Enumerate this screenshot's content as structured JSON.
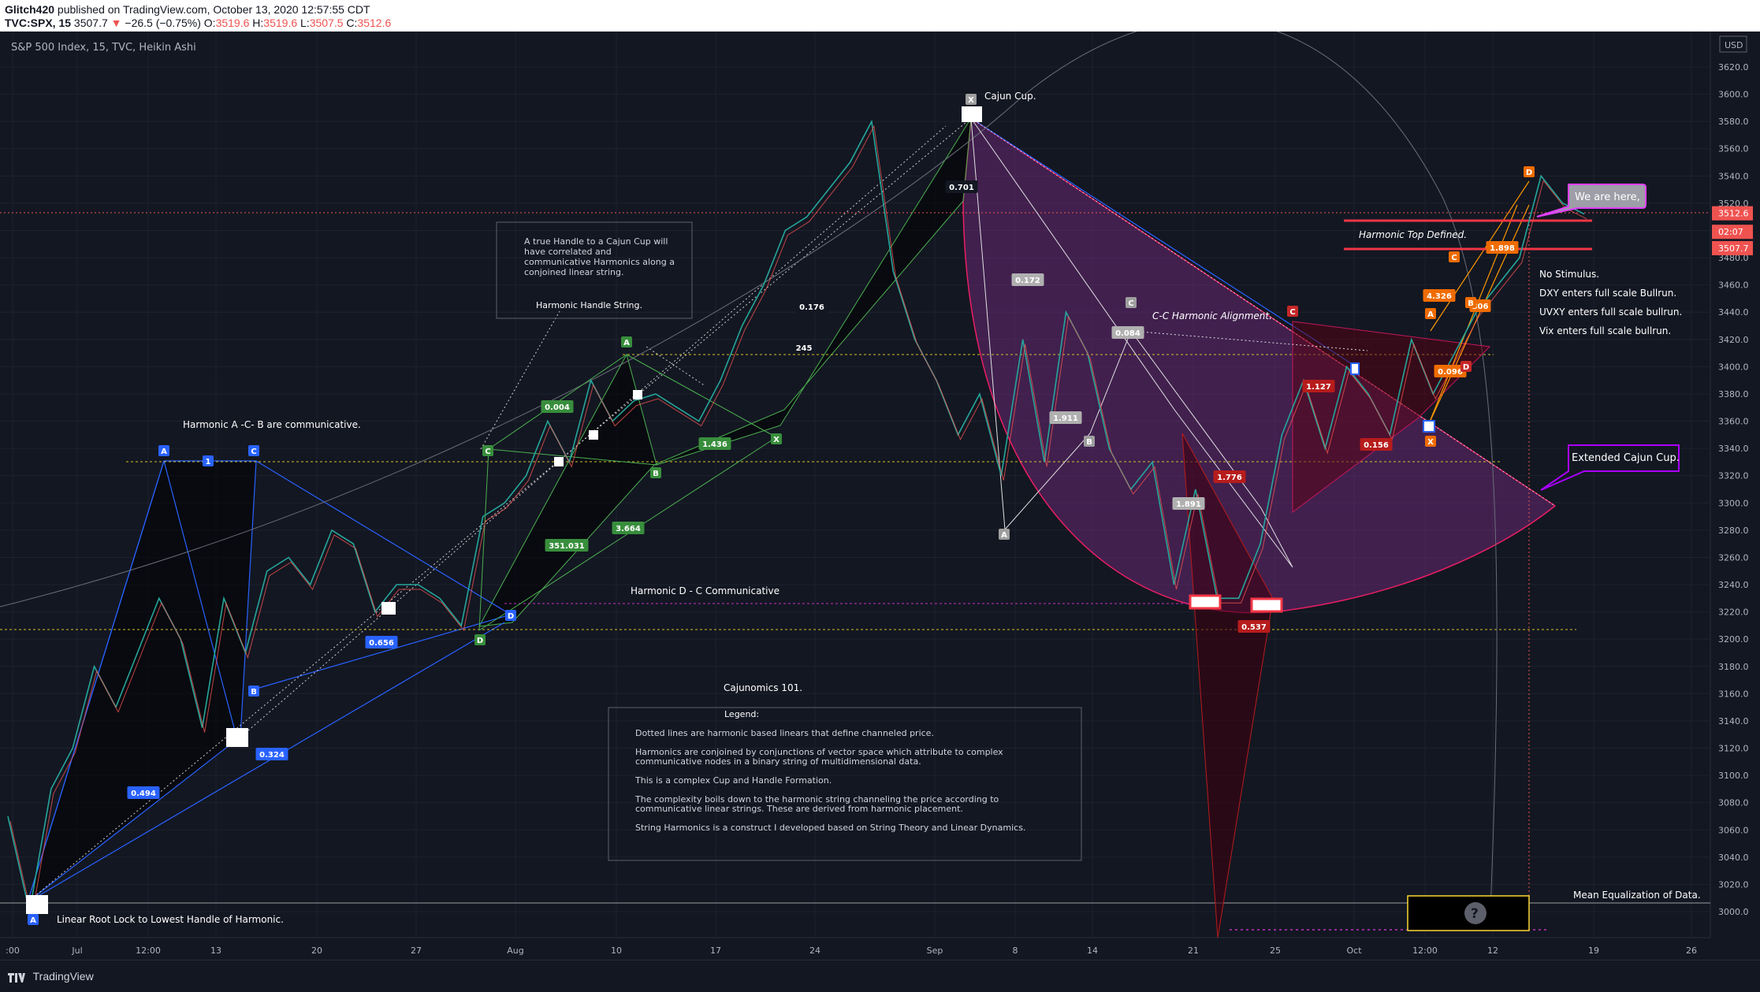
{
  "header": {
    "author": "Glitch420",
    "published": "published on TradingView.com, October 13, 2020 12:57:55 CDT",
    "symbol": "TVC:SPX, 15",
    "price": "3507.7",
    "change": "−26.5 (−0.75%)",
    "o_label": "O:",
    "o": "3519.6",
    "h_label": "H:",
    "h": "3519.6",
    "l_label": "L:",
    "l": "3507.5",
    "c_label": "C:",
    "c": "3512.6"
  },
  "chart_title": "S&P 500 Index, 15, TVC, Heikin Ashi",
  "currency": "USD",
  "footer": {
    "logo": "TradingView"
  },
  "chart_data": {
    "type": "line",
    "title": "S&P 500 Index, 15, TVC, Heikin Ashi",
    "ylim": [
      2980,
      3640
    ],
    "yticks": [
      "3620.0",
      "3600.0",
      "3580.0",
      "3560.0",
      "3540.0",
      "3520.0",
      "3500.0",
      "3480.0",
      "3460.0",
      "3440.0",
      "3420.0",
      "3400.0",
      "3380.0",
      "3360.0",
      "3340.0",
      "3320.0",
      "3300.0",
      "3280.0",
      "3260.0",
      "3240.0",
      "3220.0",
      "3200.0",
      "3180.0",
      "3160.0",
      "3140.0",
      "3120.0",
      "3100.0",
      "3080.0",
      "3060.0",
      "3040.0",
      "3020.0",
      "3000.0"
    ],
    "xticks": [
      ":00",
      "Jul",
      "12:00",
      "13",
      "20",
      "27",
      "Aug",
      "10",
      "17",
      "24",
      "Sep",
      "8",
      "14",
      "21",
      "25",
      "Oct",
      "12:00",
      "12",
      "19",
      "26"
    ],
    "price_tags": [
      {
        "label": "3512.6",
        "value": 3512.6,
        "color": "#ef5350"
      },
      {
        "label": "02:07",
        "value": 3499,
        "color": "#ef5350"
      },
      {
        "label": "3507.7",
        "value": 3487,
        "color": "#ef5350"
      }
    ],
    "series": [
      {
        "values": [
          3070,
          3000,
          3090,
          3120,
          3180,
          3150,
          3190,
          3230,
          3200,
          3135,
          3230,
          3190,
          3250,
          3260,
          3240,
          3280,
          3270,
          3220,
          3240,
          3240,
          3230,
          3210,
          3290,
          3300,
          3320,
          3360,
          3330,
          3390,
          3360,
          3375,
          3380,
          3370,
          3360,
          3390,
          3430,
          3460,
          3500,
          3510,
          3530,
          3550,
          3580,
          3470,
          3420,
          3390,
          3350,
          3380,
          3320,
          3420,
          3330,
          3440,
          3410,
          3340,
          3310,
          3330,
          3240,
          3310,
          3230,
          3230,
          3270,
          3350,
          3390,
          3340,
          3400,
          3380,
          3350,
          3420,
          3380,
          3410,
          3440,
          3460,
          3480,
          3540,
          3520,
          3512
        ]
      }
    ]
  },
  "labels": {
    "cajun_cup": "Cajun Cup.",
    "handle_note_1": "A true Handle to a Cajun Cup will",
    "handle_note_2": "have correlated and",
    "handle_note_3": "communicative Harmonics along a",
    "handle_note_4": "conjoined linear string.",
    "harmonic_handle_string": "Harmonic Handle String.",
    "harmonic_acb": "Harmonic A -C- B are communicative.",
    "harmonic_dc": "Harmonic D - C Communicative",
    "cc_alignment": "C-C Harmonic Alignment.",
    "harmonic_top": "Harmonic Top Defined.",
    "we_are_here": "We are here,",
    "extended_cup": "Extended Cajun Cup.",
    "no_stimulus": "No Stimulus.",
    "dxy": "DXY enters full scale Bullrun.",
    "uvxy": "UVXY enters full scale bullrun.",
    "vix": "Vix enters full scale bullrun.",
    "linear_root": "Linear Root Lock to Lowest Handle of Harmonic.",
    "mean_eq": "Mean Equalization of Data.",
    "cajunomics": "Cajunomics 101.",
    "legend_title": "Legend:",
    "legend_1": "Dotted lines are harmonic based linears that define channeled price.",
    "legend_2a": "Harmonics are conjoined by conjunctions of vector space which attribute to complex",
    "legend_2b": "communicative nodes in a binary string of multidimensional data.",
    "legend_3": "This is a complex Cup and Handle Formation.",
    "legend_4a": "The complexity boils down to the harmonic string channeling the price according to",
    "legend_4b": "communicative linear strings. These are derived from harmonic placement.",
    "legend_5": "String Harmonics is a construct I developed based on String Theory and Linear Dynamics."
  },
  "ratio_tags": {
    "r0494": "0.494",
    "r0324": "0.324",
    "r0656": "0.656",
    "r0004": "0.004",
    "r1436": "1.436",
    "r351": "351.031",
    "r3664": "3.664",
    "r0176": "0.176",
    "r0701": "0.701",
    "r245": "245",
    "r0172": "0.172",
    "r0084": "0.084",
    "r1127": "1.127",
    "r0156": "0.156",
    "r0537": "0.537",
    "r4326": "4.326",
    "r1898": "1.898",
    "r306": "306",
    "r0096": "0.096",
    "r1911": "1.911",
    "r1891": "1.891",
    "r1776": "1.776"
  },
  "point_letters": {
    "A": "A",
    "B": "B",
    "C": "C",
    "D": "D",
    "X": "X",
    "one": "1"
  }
}
